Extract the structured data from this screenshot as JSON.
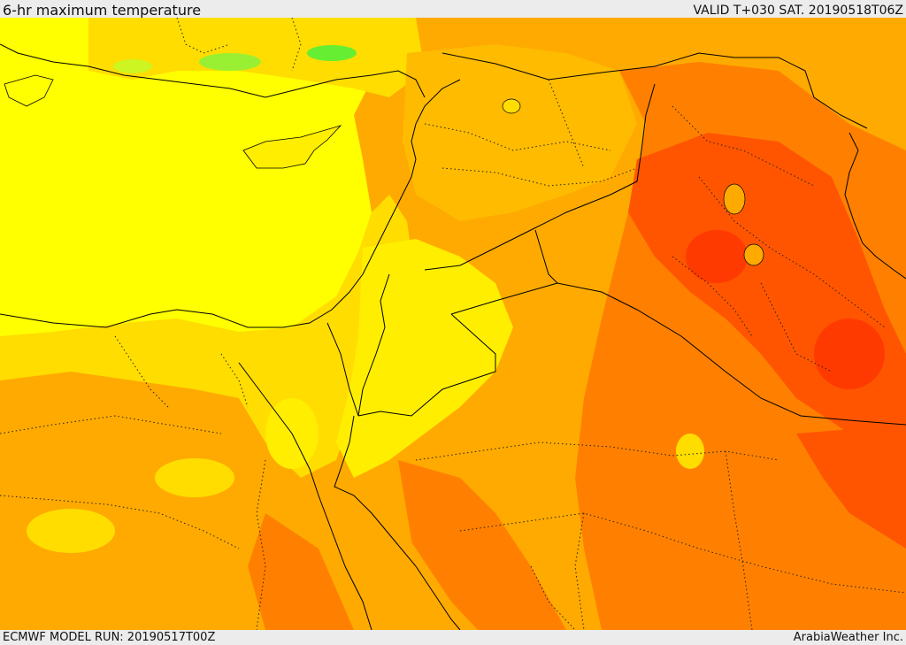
{
  "header": {
    "title": "6-hr maximum temperature",
    "valid": "VALID T+030 SAT. 20190518T06Z"
  },
  "footer": {
    "model_run": "ECMWF MODEL RUN: 20190517T00Z",
    "credit": "ArabiaWeather Inc."
  },
  "colors": {
    "mild": "#ffff00",
    "warm": "#ffdd00",
    "hot": "#ffaa00",
    "very_hot": "#ff8000",
    "extreme": "#ff5500",
    "severe": "#ff3a00",
    "cool": "#66ee33",
    "cooler": "#99f033",
    "border": "#000000"
  }
}
